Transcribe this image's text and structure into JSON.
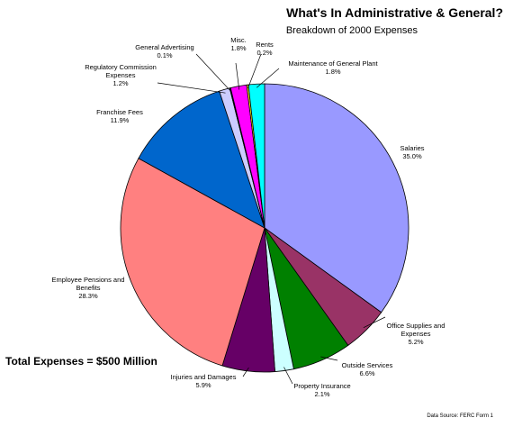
{
  "chart_data": {
    "type": "pie",
    "title": "What's In Administrative & General?",
    "subtitle": "Breakdown of 2000 Expenses",
    "total_label": "Total Expenses = $500 Million",
    "source": "Data Source: FERC Form 1",
    "slices": [
      {
        "key": "salaries",
        "label_lines": [
          "Salaries"
        ],
        "pct_text": "35.0%",
        "value": 35.0,
        "color": "#9999ff"
      },
      {
        "key": "office-supplies",
        "label_lines": [
          "Office Supplies and",
          "Expenses"
        ],
        "pct_text": "5.2%",
        "value": 5.2,
        "color": "#993366"
      },
      {
        "key": "outside-services",
        "label_lines": [
          "Outside Services"
        ],
        "pct_text": "6.6%",
        "value": 6.6,
        "color": "#008000"
      },
      {
        "key": "property-insurance",
        "label_lines": [
          "Property Insurance"
        ],
        "pct_text": "2.1%",
        "value": 2.1,
        "color": "#ccffff"
      },
      {
        "key": "injuries-damages",
        "label_lines": [
          "Injuries and Damages"
        ],
        "pct_text": "5.9%",
        "value": 5.9,
        "color": "#660066"
      },
      {
        "key": "employee-pensions",
        "label_lines": [
          "Employee Pensions and",
          "Benefits"
        ],
        "pct_text": "28.3%",
        "value": 28.3,
        "color": "#ff8080"
      },
      {
        "key": "franchise-fees",
        "label_lines": [
          "Franchise Fees"
        ],
        "pct_text": "11.9%",
        "value": 11.9,
        "color": "#0066cc"
      },
      {
        "key": "regulatory-commission",
        "label_lines": [
          "Regulatory Commission",
          "Expenses"
        ],
        "pct_text": "1.2%",
        "value": 1.2,
        "color": "#ccccff"
      },
      {
        "key": "general-advertising",
        "label_lines": [
          "General Advertising"
        ],
        "pct_text": "0.1%",
        "value": 0.1,
        "color": "#000080"
      },
      {
        "key": "misc",
        "label_lines": [
          "Misc."
        ],
        "pct_text": "1.8%",
        "value": 1.8,
        "color": "#ff00ff"
      },
      {
        "key": "rents",
        "label_lines": [
          "Rents"
        ],
        "pct_text": "0.2%",
        "value": 0.2,
        "color": "#ffff00"
      },
      {
        "key": "maintenance-general-plant",
        "label_lines": [
          "Maintenance of General Plant"
        ],
        "pct_text": "1.8%",
        "value": 1.8,
        "color": "#00ffff"
      }
    ]
  }
}
